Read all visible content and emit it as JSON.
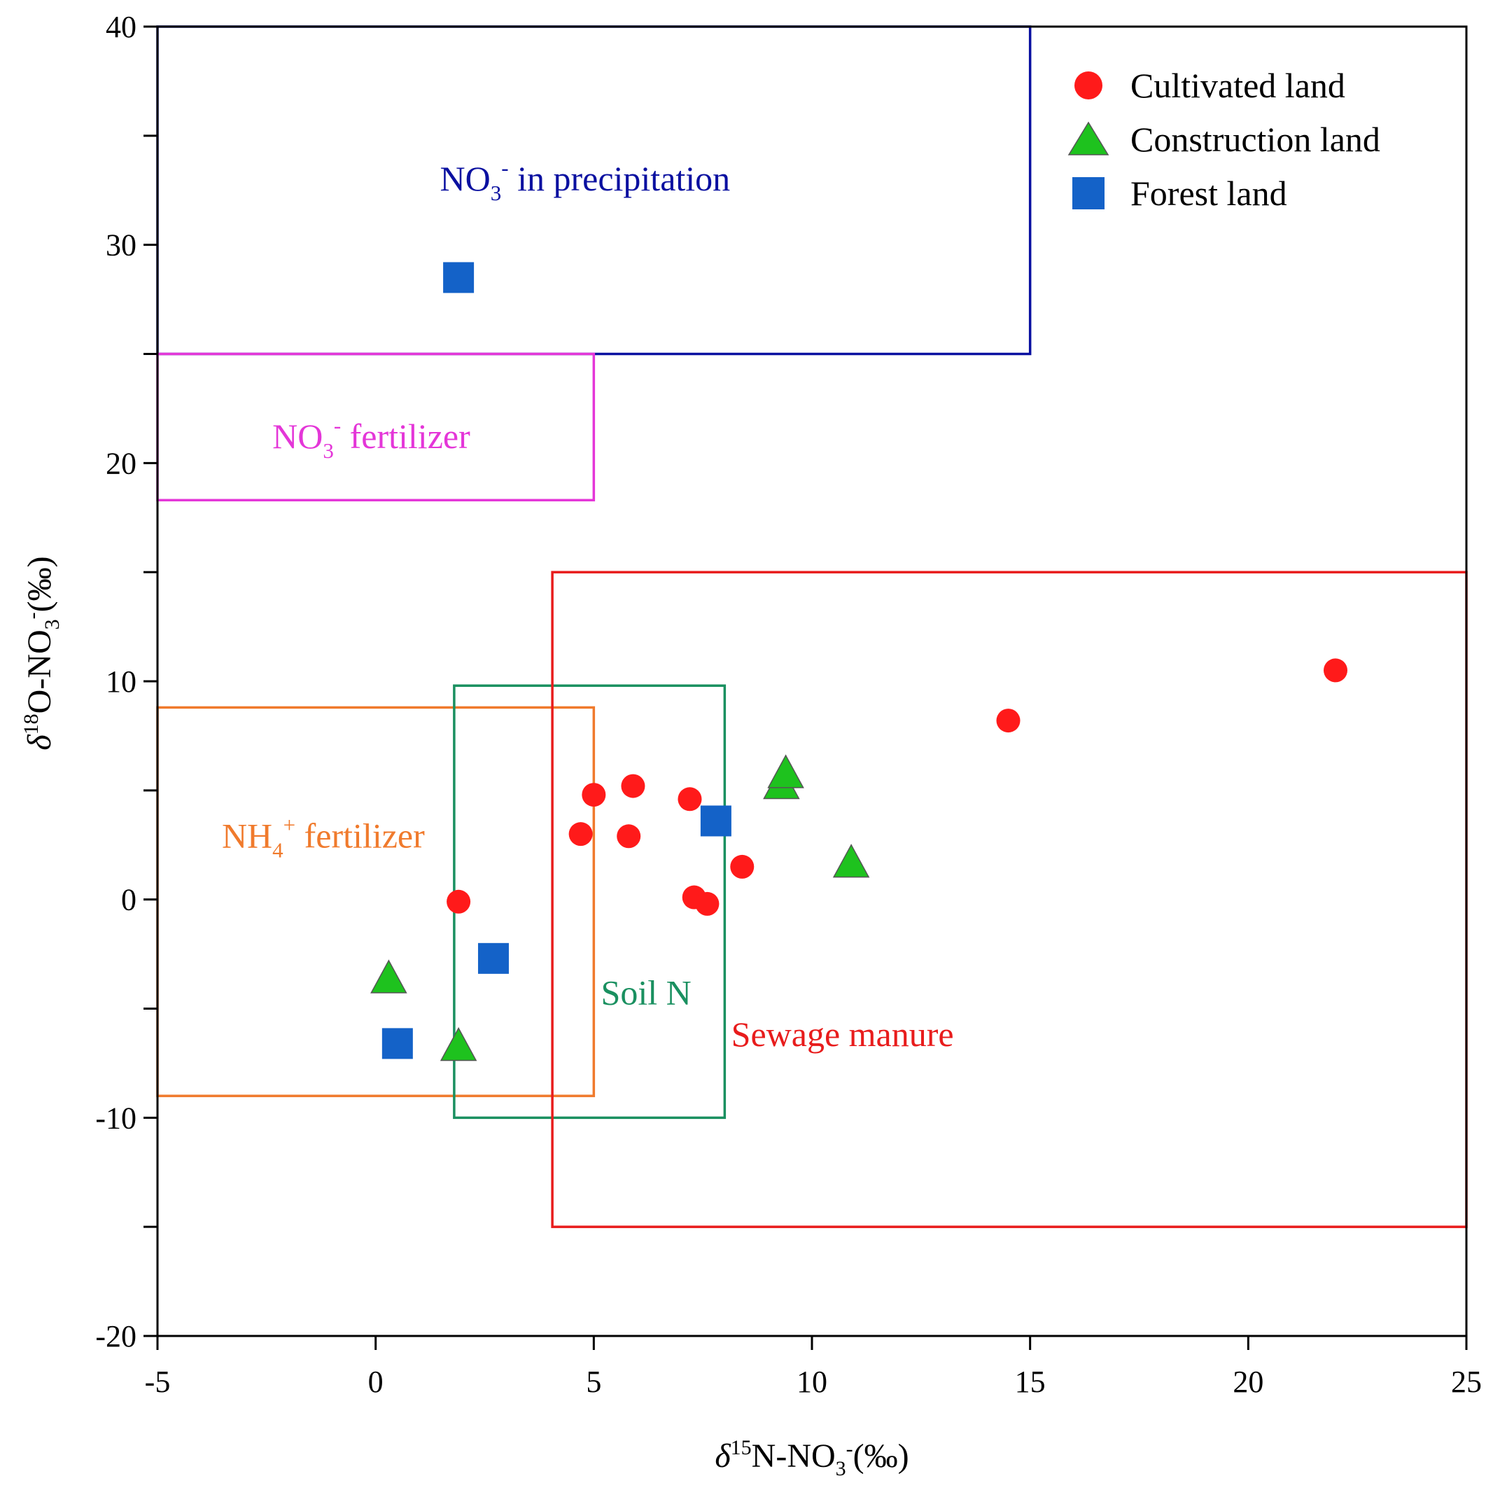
{
  "chart_data": {
    "type": "scatter",
    "xlabel": "δ15N-NO3-(‰)",
    "ylabel": "δ18O-NO3-(‰)",
    "xlim": [
      -5,
      25
    ],
    "ylim": [
      -20,
      40
    ],
    "x_ticks": [
      -5,
      0,
      5,
      10,
      15,
      20,
      25
    ],
    "x_tick_labels": [
      "-5",
      "0",
      "5",
      "10",
      "15",
      "20",
      "25"
    ],
    "y_ticks": [
      -20,
      -10,
      0,
      10,
      20,
      30,
      40
    ],
    "y_tick_labels": [
      "-20",
      "-10",
      "0",
      "10",
      "20",
      "30",
      "40"
    ],
    "y_minor_ticks": [
      -15,
      -5,
      5,
      15,
      25,
      35
    ],
    "grid": false,
    "legend_position": "top-right",
    "regions": [
      {
        "name": "NO3- in precipitation",
        "label_main": "NO",
        "label_sub": "3",
        "label_sup": "-",
        "label_rest": " in precipitation",
        "x_range": [
          -5,
          15
        ],
        "y_range": [
          25,
          40
        ],
        "color": "#0a10a0",
        "label_at": [
          4.8,
          33
        ]
      },
      {
        "name": "NO3- fertilizer",
        "label_main": "NO",
        "label_sub": "3",
        "label_sup": "-",
        "label_rest": " fertilizer",
        "x_range": [
          -5,
          5
        ],
        "y_range": [
          18.3,
          25
        ],
        "color": "#e436d8",
        "label_at": [
          -0.1,
          21.2
        ]
      },
      {
        "name": "NH4+ fertilizer",
        "label_main": "NH",
        "label_sub": "4",
        "label_sup": "+",
        "label_rest": " fertilizer",
        "x_range": [
          -5,
          5
        ],
        "y_range": [
          -9,
          8.8
        ],
        "color": "#f07a2c",
        "label_at": [
          -1.2,
          2.9
        ]
      },
      {
        "name": "Soil N",
        "label_main": "Soil N",
        "label_sub": "",
        "label_sup": "",
        "label_rest": "",
        "x_range": [
          1.8,
          8
        ],
        "y_range": [
          -10,
          9.8
        ],
        "color": "#1a9060",
        "label_at": [
          6.2,
          -4.3
        ]
      },
      {
        "name": "Sewage manure",
        "label_main": "Sewage manure",
        "label_sub": "",
        "label_sup": "",
        "label_rest": "",
        "x_range": [
          4.05,
          25
        ],
        "y_range": [
          -15,
          15
        ],
        "color": "#e81c1c",
        "label_at": [
          10.7,
          -6.2
        ]
      }
    ],
    "series": [
      {
        "name": "Cultivated land",
        "marker": "circle",
        "color": "#ff1a1a",
        "points": [
          {
            "x": 1.9,
            "y": -0.1
          },
          {
            "x": 4.7,
            "y": 3.0
          },
          {
            "x": 5.0,
            "y": 4.8
          },
          {
            "x": 5.8,
            "y": 2.9
          },
          {
            "x": 5.9,
            "y": 5.2
          },
          {
            "x": 7.2,
            "y": 4.6
          },
          {
            "x": 7.3,
            "y": 0.1
          },
          {
            "x": 7.6,
            "y": -0.2
          },
          {
            "x": 8.4,
            "y": 1.5
          },
          {
            "x": 14.5,
            "y": 8.2
          },
          {
            "x": 22.0,
            "y": 10.5
          }
        ]
      },
      {
        "name": "Construction land",
        "marker": "triangle",
        "color": "#1ec21e",
        "points": [
          {
            "x": 0.3,
            "y": -3.6
          },
          {
            "x": 1.9,
            "y": -6.7
          },
          {
            "x": 9.3,
            "y": 5.3
          },
          {
            "x": 9.4,
            "y": 5.8
          },
          {
            "x": 10.9,
            "y": 1.7
          }
        ]
      },
      {
        "name": "Forest land",
        "marker": "square",
        "color": "#1462c8",
        "points": [
          {
            "x": 1.9,
            "y": 28.5
          },
          {
            "x": 0.5,
            "y": -6.6
          },
          {
            "x": 2.7,
            "y": -2.7
          },
          {
            "x": 7.8,
            "y": 3.6
          }
        ]
      }
    ]
  }
}
